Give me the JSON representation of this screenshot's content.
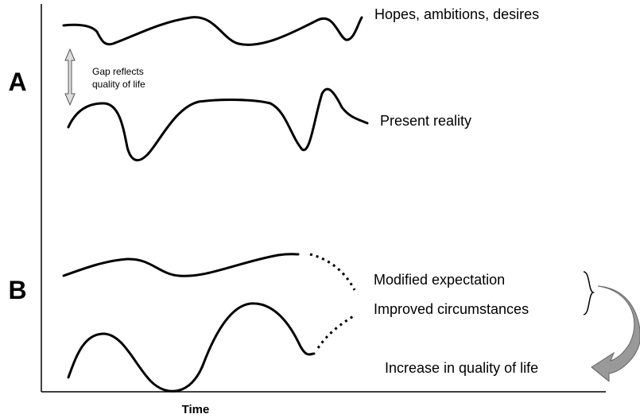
{
  "labels": {
    "a": "A",
    "b": "B"
  },
  "axis": {
    "x_label": "Time"
  },
  "panel_a": {
    "hopes": "Hopes, ambitions, desires",
    "gap_line1": "Gap reflects",
    "gap_line2": "quality of life",
    "reality": "Present reality"
  },
  "panel_b": {
    "modified": "Modified expectation",
    "improved": "Improved circumstances",
    "increase": "Increase in quality of life"
  }
}
